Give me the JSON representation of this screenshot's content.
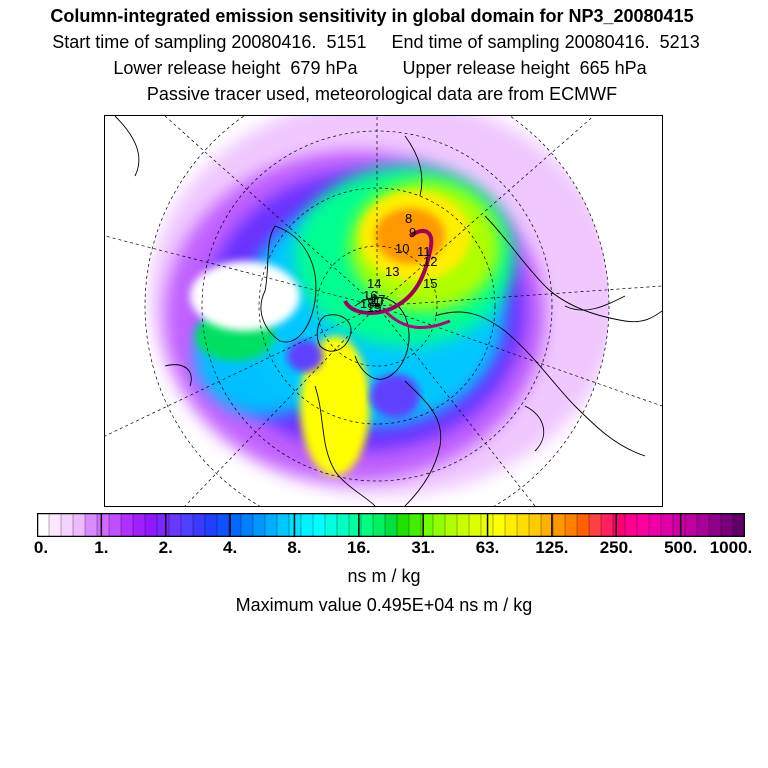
{
  "header": {
    "title": "Column-integrated emission sensitivity in global domain for NP3_20080415",
    "sampling_line": "Start time of sampling 20080416.  5151     End time of sampling 20080416.  5213",
    "release_line": "Lower release height  679 hPa         Upper release height  665 hPa",
    "tracer_line": "Passive tracer used, meteorological data are from ECMWF"
  },
  "map": {
    "projection": "polar stereographic (north)",
    "track_labels": [
      "8",
      "9",
      "10",
      "11",
      "12",
      "13",
      "14",
      "15",
      "16",
      "17",
      "18",
      "19",
      "20"
    ]
  },
  "colorbar": {
    "tick_labels": [
      "0.",
      "1.",
      "2.",
      "4.",
      "8.",
      "16.",
      "31.",
      "63.",
      "125.",
      "250.",
      "500.",
      "1000."
    ],
    "colors": [
      "#ffffff",
      "#fbe8ff",
      "#f5d2ff",
      "#eebaff",
      "#d98aff",
      "#cf6cff",
      "#c050ff",
      "#b030ff",
      "#a020ff",
      "#9018ff",
      "#7a28ff",
      "#6838ff",
      "#5040ff",
      "#3a3aff",
      "#2040ff",
      "#1050ff",
      "#0068ff",
      "#0080ff",
      "#0098ff",
      "#00b0ff",
      "#00c8ff",
      "#00e0ff",
      "#00f4ff",
      "#00ffff",
      "#00ffe0",
      "#00ffc0",
      "#00ffa0",
      "#00ff80",
      "#00f060",
      "#00e040",
      "#20e000",
      "#40f000",
      "#70ff00",
      "#90ff00",
      "#b0ff00",
      "#c8ff00",
      "#ddff00",
      "#eeff00",
      "#ffff00",
      "#ffee00",
      "#ffdd00",
      "#ffcc00",
      "#ffb000",
      "#ff9800",
      "#ff8000",
      "#ff6000",
      "#ff4040",
      "#ff2060",
      "#ff0070",
      "#ff0090",
      "#ff00a0",
      "#f000a8",
      "#e000a8",
      "#d000a8",
      "#c000a0",
      "#a80098",
      "#900088",
      "#780078",
      "#600068"
    ],
    "unit": "ns m / kg"
  },
  "footer": {
    "max_value": "Maximum value  0.495E+04 ns m / kg"
  }
}
